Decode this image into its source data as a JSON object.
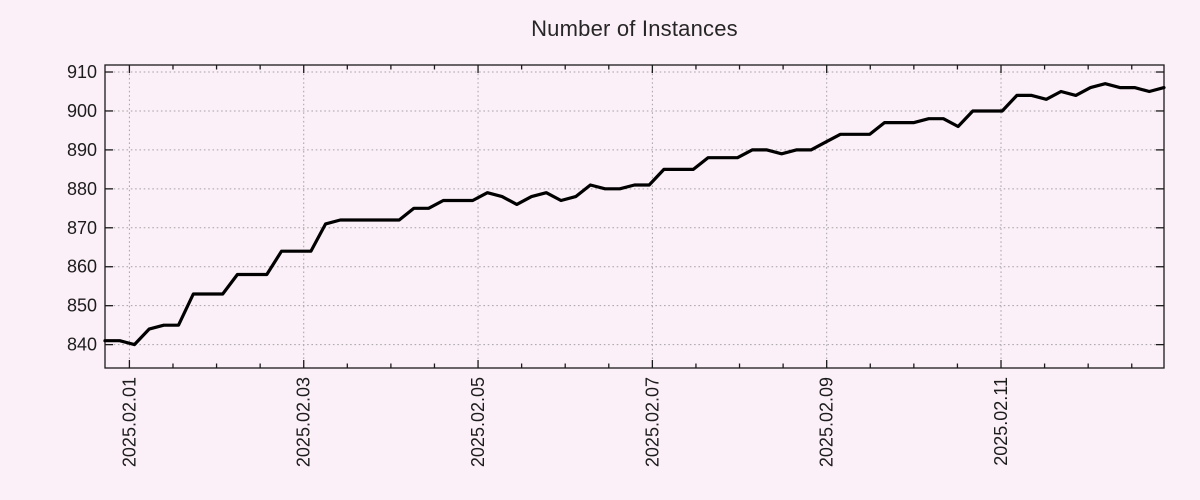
{
  "title": "Number of Instances",
  "chart_data": {
    "type": "line",
    "title": "Number of Instances",
    "xlabel": "",
    "ylabel": "",
    "legend": "none",
    "grid": true,
    "background_color": "#fcf0f8",
    "line_color": "#000000",
    "grid_color": "#a3a3a3",
    "axis_color": "#1a1a1a",
    "text_color": "#1c1c1c",
    "y_ticks": [
      840,
      850,
      860,
      870,
      880,
      890,
      900,
      910
    ],
    "ylim": [
      834.0,
      911.8
    ],
    "x_tick_labels": [
      "2025.02.01",
      "2025.02.03",
      "2025.02.05",
      "2025.02.07",
      "2025.02.09",
      "2025.02.11"
    ],
    "x_major_tick_days": [
      0,
      2,
      4,
      6,
      8,
      10
    ],
    "x_minor_tick_step_days": 0.5,
    "xlim_days": [
      -0.28,
      11.87
    ],
    "sample_interval_hours": 4,
    "series_name": "instances",
    "values": [
      841,
      841,
      840,
      844,
      845,
      845,
      853,
      853,
      853,
      858,
      858,
      858,
      864,
      864,
      864,
      871,
      872,
      872,
      872,
      872,
      872,
      875,
      875,
      877,
      877,
      877,
      879,
      878,
      876,
      878,
      879,
      877,
      878,
      881,
      880,
      880,
      881,
      881,
      885,
      885,
      885,
      888,
      888,
      888,
      890,
      890,
      889,
      890,
      890,
      892,
      894,
      894,
      894,
      897,
      897,
      897,
      898,
      898,
      896,
      900,
      900,
      900,
      904,
      904,
      903,
      905,
      904,
      906,
      907,
      906,
      906,
      905,
      906
    ]
  }
}
